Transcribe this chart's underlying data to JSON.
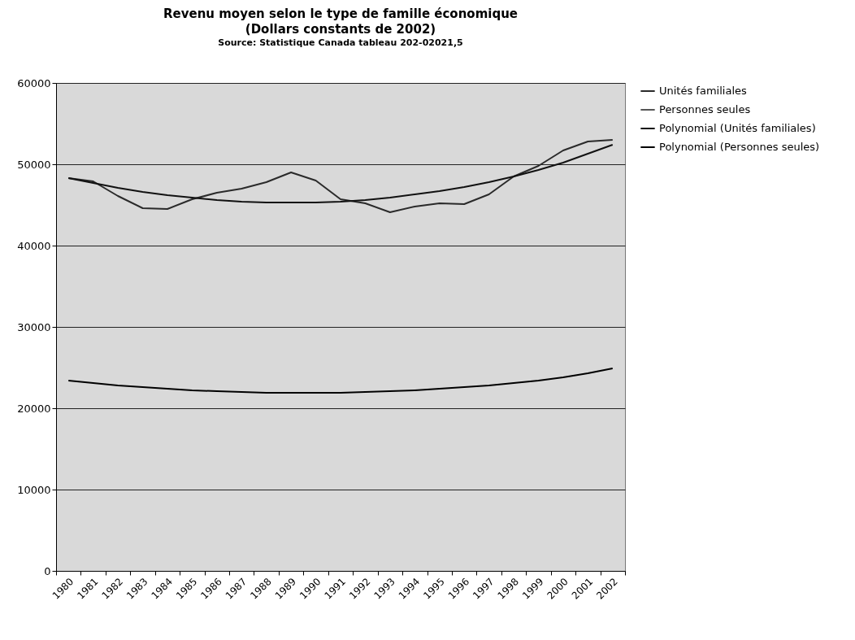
{
  "chart_data": {
    "type": "line",
    "title": "Revenu moyen selon le type de famille économique",
    "subtitle": "(Dollars constants de 2002)",
    "annotations": [
      "Source: Statistique Canada tableau 202-02021,5"
    ],
    "categories": [
      "1980",
      "1981",
      "1982",
      "1983",
      "1984",
      "1985",
      "1986",
      "1987",
      "1988",
      "1989",
      "1990",
      "1991",
      "1992",
      "1993",
      "1994",
      "1995",
      "1996",
      "1997",
      "1998",
      "1999",
      "2000",
      "2001",
      "2002"
    ],
    "series": [
      {
        "name": "Unités familiales",
        "color": "#2a2a2a",
        "values": [
          48300,
          47900,
          46100,
          44600,
          44500,
          45700,
          46500,
          47000,
          47800,
          49000,
          48000,
          45700,
          45200,
          44100,
          44800,
          45200,
          45100,
          46300,
          48500,
          49800,
          51700,
          52800,
          53000
        ]
      },
      {
        "name": "Personnes seules",
        "color": "#555555",
        "values": [
          null,
          null,
          null,
          null,
          null,
          null,
          null,
          null,
          null,
          null,
          null,
          null,
          null,
          null,
          null,
          null,
          null,
          null,
          null,
          null,
          null,
          null,
          null
        ]
      },
      {
        "name": "Polynomial (Unités familiales)",
        "color": "#111111",
        "values": [
          48300,
          47700,
          47100,
          46600,
          46200,
          45900,
          45600,
          45400,
          45300,
          45300,
          45300,
          45400,
          45600,
          45900,
          46300,
          46700,
          47200,
          47800,
          48500,
          49300,
          50200,
          51300,
          52400
        ]
      },
      {
        "name": "Polynomial (Personnes seules)",
        "color": "#000000",
        "values": [
          23400,
          23100,
          22800,
          22600,
          22400,
          22200,
          22100,
          22000,
          21900,
          21900,
          21900,
          21900,
          22000,
          22100,
          22200,
          22400,
          22600,
          22800,
          23100,
          23400,
          23800,
          24300,
          24900
        ]
      }
    ],
    "ylim": [
      0,
      60000
    ],
    "yticks": [
      0,
      10000,
      20000,
      30000,
      40000,
      50000,
      60000
    ],
    "grid": "y",
    "legend": "right"
  }
}
